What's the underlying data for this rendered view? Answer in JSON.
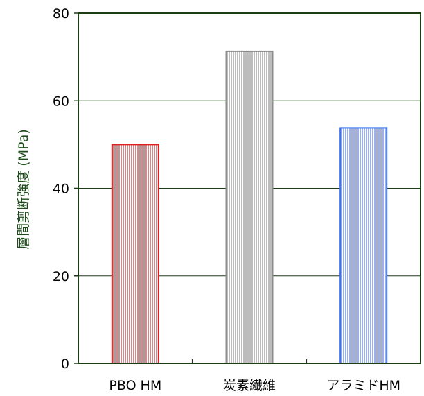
{
  "chart_data": {
    "type": "bar",
    "title": "",
    "xlabel": "",
    "ylabel": "層間剪断強度 (MPa)",
    "categories": [
      "PBO HM",
      "炭素繊維",
      "アラミドHM"
    ],
    "values": [
      50,
      71.3,
      53.8
    ],
    "ylim": [
      0,
      80
    ],
    "yticks": [
      0,
      20,
      40,
      60,
      80
    ],
    "grid": true,
    "legend": "none",
    "colors": {
      "axis": "#1d3d17",
      "grid": "#1d3d17",
      "ylabel": "#1d4d1a",
      "bars": [
        {
          "stroke": "#e02020",
          "fill": "#c9a2a2"
        },
        {
          "stroke": "#8c8c8c",
          "fill": "#cfcfcf"
        },
        {
          "stroke": "#3b6ef0",
          "fill": "#aab8e6"
        }
      ]
    }
  }
}
